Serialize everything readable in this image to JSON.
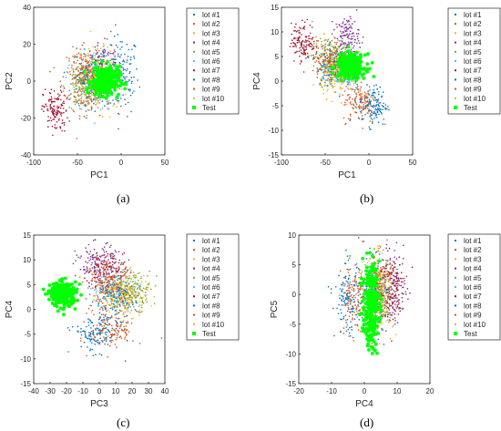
{
  "series_colors": [
    "#0072bd",
    "#d95319",
    "#edb120",
    "#7e2f8e",
    "#77ac30",
    "#4dbeee",
    "#a2142f",
    "#0072bd",
    "#d95319",
    "#edb120",
    "#00ff00"
  ],
  "chart_data": [
    {
      "id": "a",
      "type": "scatter",
      "caption": "(a)",
      "xlabel": "PC1",
      "ylabel": "PC2",
      "xlim": [
        -100,
        50
      ],
      "ylim": [
        -40,
        40
      ],
      "xticks": [
        -100,
        -50,
        0,
        50
      ],
      "yticks": [
        -40,
        -20,
        0,
        20,
        40
      ],
      "legend": [
        "lot #1",
        "lot #2",
        "lot #3",
        "lot #4",
        "lot #5",
        "lot #6",
        "lot #7",
        "lot #8",
        "lot #9",
        "lot #10",
        "Test"
      ],
      "series": [
        {
          "name": "lot #1",
          "center": [
            0,
            3
          ],
          "spread": [
            10,
            11
          ]
        },
        {
          "name": "lot #2",
          "center": [
            -35,
            -2
          ],
          "spread": [
            12,
            8
          ]
        },
        {
          "name": "lot #3",
          "center": [
            -30,
            4
          ],
          "spread": [
            11,
            7
          ]
        },
        {
          "name": "lot #4",
          "center": [
            -22,
            6
          ],
          "spread": [
            10,
            7
          ]
        },
        {
          "name": "lot #5",
          "center": [
            -45,
            -3
          ],
          "spread": [
            10,
            7
          ]
        },
        {
          "name": "lot #6",
          "center": [
            -28,
            0
          ],
          "spread": [
            12,
            8
          ]
        },
        {
          "name": "lot #7",
          "center": [
            -75,
            -16
          ],
          "spread": [
            7,
            6
          ]
        },
        {
          "name": "lot #8",
          "center": [
            -35,
            2
          ],
          "spread": [
            10,
            7
          ]
        },
        {
          "name": "lot #9",
          "center": [
            -40,
            4
          ],
          "spread": [
            11,
            7
          ]
        },
        {
          "name": "lot #10",
          "center": [
            -25,
            -2
          ],
          "spread": [
            11,
            7
          ]
        },
        {
          "name": "Test",
          "center": [
            -18,
            0
          ],
          "spread": [
            8,
            4
          ]
        }
      ]
    },
    {
      "id": "b",
      "type": "scatter",
      "caption": "(b)",
      "xlabel": "PC1",
      "ylabel": "PC4",
      "xlim": [
        -100,
        50
      ],
      "ylim": [
        -15,
        15
      ],
      "xticks": [
        -100,
        -50,
        0,
        50
      ],
      "yticks": [
        -15,
        -10,
        -5,
        0,
        5,
        10,
        15
      ],
      "legend": [
        "lot #1",
        "lot #2",
        "lot #3",
        "lot #4",
        "lot #5",
        "lot #6",
        "lot #7",
        "lot #8",
        "lot #9",
        "lot #10",
        "Test"
      ],
      "series": [
        {
          "name": "lot #1",
          "center": [
            5,
            -5
          ],
          "spread": [
            8,
            2
          ]
        },
        {
          "name": "lot #2",
          "center": [
            -10,
            -4
          ],
          "spread": [
            10,
            2.2
          ]
        },
        {
          "name": "lot #3",
          "center": [
            -35,
            4
          ],
          "spread": [
            10,
            2
          ]
        },
        {
          "name": "lot #4",
          "center": [
            -25,
            9
          ],
          "spread": [
            7,
            2
          ]
        },
        {
          "name": "lot #5",
          "center": [
            -45,
            5
          ],
          "spread": [
            10,
            2
          ]
        },
        {
          "name": "lot #6",
          "center": [
            -30,
            2
          ],
          "spread": [
            10,
            2
          ]
        },
        {
          "name": "lot #7",
          "center": [
            -75,
            8
          ],
          "spread": [
            7,
            2
          ]
        },
        {
          "name": "lot #8",
          "center": [
            -40,
            3
          ],
          "spread": [
            10,
            2
          ]
        },
        {
          "name": "lot #9",
          "center": [
            -45,
            4
          ],
          "spread": [
            10,
            2
          ]
        },
        {
          "name": "lot #10",
          "center": [
            -35,
            1
          ],
          "spread": [
            10,
            2
          ]
        },
        {
          "name": "Test",
          "center": [
            -20,
            3
          ],
          "spread": [
            8,
            1.2
          ]
        }
      ]
    },
    {
      "id": "c",
      "type": "scatter",
      "caption": "(c)",
      "xlabel": "PC3",
      "ylabel": "PC4",
      "xlim": [
        -40,
        40
      ],
      "ylim": [
        -15,
        15
      ],
      "xticks": [
        -40,
        -30,
        -20,
        -10,
        0,
        10,
        20,
        30,
        40
      ],
      "yticks": [
        -15,
        -10,
        -5,
        0,
        5,
        10,
        15
      ],
      "legend": [
        "lot #1",
        "lot #2",
        "lot #3",
        "lot #4",
        "lot #5",
        "lot #6",
        "lot #7",
        "lot #8",
        "lot #9",
        "lot #10",
        "Test"
      ],
      "series": [
        {
          "name": "lot #1",
          "center": [
            -2,
            -5
          ],
          "spread": [
            7,
            1.8
          ]
        },
        {
          "name": "lot #2",
          "center": [
            8,
            -4
          ],
          "spread": [
            7,
            2
          ]
        },
        {
          "name": "lot #3",
          "center": [
            18,
            3
          ],
          "spread": [
            6,
            2
          ]
        },
        {
          "name": "lot #4",
          "center": [
            0,
            9
          ],
          "spread": [
            7,
            2
          ]
        },
        {
          "name": "lot #5",
          "center": [
            20,
            4
          ],
          "spread": [
            6,
            2
          ]
        },
        {
          "name": "lot #6",
          "center": [
            10,
            4
          ],
          "spread": [
            7,
            2
          ]
        },
        {
          "name": "lot #7",
          "center": [
            5,
            8
          ],
          "spread": [
            6,
            2
          ]
        },
        {
          "name": "lot #8",
          "center": [
            8,
            2
          ],
          "spread": [
            7,
            2
          ]
        },
        {
          "name": "lot #9",
          "center": [
            5,
            5
          ],
          "spread": [
            7,
            2
          ]
        },
        {
          "name": "lot #10",
          "center": [
            12,
            3
          ],
          "spread": [
            7,
            2
          ]
        },
        {
          "name": "Test",
          "center": [
            -22,
            3
          ],
          "spread": [
            4,
            1.2
          ]
        }
      ]
    },
    {
      "id": "d",
      "type": "scatter",
      "caption": "(d)",
      "xlabel": "PC4",
      "ylabel": "PC5",
      "xlim": [
        -20,
        20
      ],
      "ylim": [
        -15,
        10
      ],
      "xticks": [
        -20,
        -10,
        0,
        10,
        20
      ],
      "yticks": [
        -15,
        -10,
        -5,
        0,
        5,
        10
      ],
      "legend": [
        "lot #1",
        "lot #2",
        "lot #3",
        "lot #4",
        "lot #5",
        "lot #6",
        "lot #7",
        "lot #8",
        "lot #9",
        "lot #10",
        "Test"
      ],
      "series": [
        {
          "name": "lot #1",
          "center": [
            -5,
            -1
          ],
          "spread": [
            2,
            3
          ]
        },
        {
          "name": "lot #2",
          "center": [
            -3,
            -1
          ],
          "spread": [
            2,
            3
          ]
        },
        {
          "name": "lot #3",
          "center": [
            4,
            1
          ],
          "spread": [
            2,
            3
          ]
        },
        {
          "name": "lot #4",
          "center": [
            9,
            1
          ],
          "spread": [
            2,
            3
          ]
        },
        {
          "name": "lot #5",
          "center": [
            4,
            0
          ],
          "spread": [
            2,
            3
          ]
        },
        {
          "name": "lot #6",
          "center": [
            3,
            0
          ],
          "spread": [
            2,
            3
          ]
        },
        {
          "name": "lot #7",
          "center": [
            8,
            1
          ],
          "spread": [
            2,
            3
          ]
        },
        {
          "name": "lot #8",
          "center": [
            3,
            0
          ],
          "spread": [
            2,
            3
          ]
        },
        {
          "name": "lot #9",
          "center": [
            4,
            1
          ],
          "spread": [
            2,
            3
          ]
        },
        {
          "name": "lot #10",
          "center": [
            5,
            0
          ],
          "spread": [
            2,
            3
          ]
        },
        {
          "name": "Test",
          "center": [
            2,
            -2
          ],
          "spread": [
            1.2,
            3.5
          ]
        }
      ]
    }
  ]
}
